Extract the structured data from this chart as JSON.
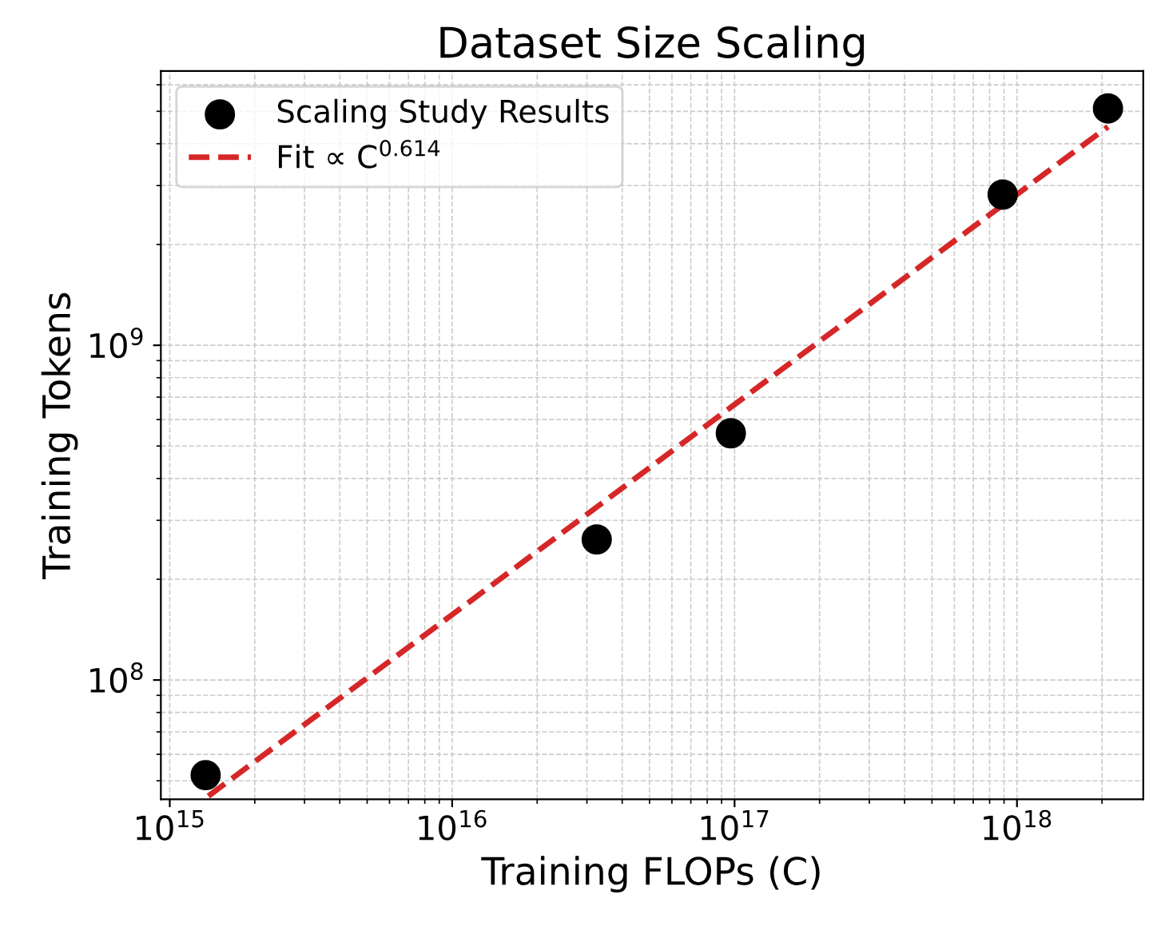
{
  "chart_data": {
    "type": "scatter",
    "title": "Dataset Size Scaling",
    "xlabel": "Training FLOPs (C)",
    "ylabel": "Training Tokens",
    "log": "xy",
    "xlim": [
      930000000000000.0,
      2.8e+18
    ],
    "ylim": [
      44000000.0,
      6600000000.0
    ],
    "xticks": [
      {
        "value": 1000000000000000.0,
        "label": "10$^{15}$"
      },
      {
        "value": 1e+16,
        "label": "10$^{16}$"
      },
      {
        "value": 1e+17,
        "label": "10$^{17}$"
      },
      {
        "value": 1e+18,
        "label": "10$^{18}$"
      }
    ],
    "yticks": [
      {
        "value": 100000000.0,
        "label": "10$^{8}$"
      },
      {
        "value": 1000000000.0,
        "label": "10$^{9}$"
      }
    ],
    "grid": true,
    "legend": "top left",
    "series": [
      {
        "name": "Scaling Study Results",
        "color": "#000000",
        "marker": "circle",
        "x": [
          1340000000000000.0,
          3.25e+16,
          9.7e+16,
          8.9e+17,
          2.1e+18
        ],
        "values": [
          52000000.0,
          263000000.0,
          546000000.0,
          2820000000.0,
          5100000000.0
        ]
      },
      {
        "name": "Fit ∝ C$^{0.614}$",
        "type": "line",
        "color": "#d62728",
        "line_style": "dashed",
        "marker": "none",
        "x": [
          1370000000000000.0,
          2.1e+18
        ],
        "values": [
          45000000.0,
          4500000000.0
        ]
      }
    ]
  }
}
